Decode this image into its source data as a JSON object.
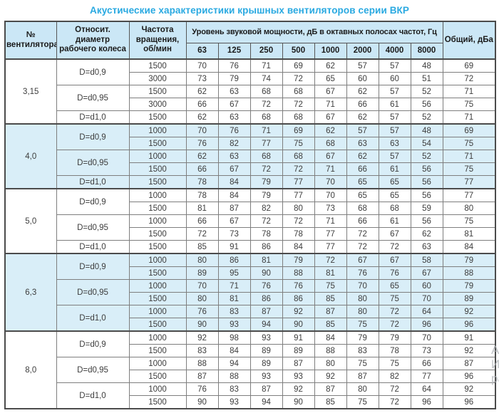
{
  "title": "Акустические характеристики крышных вентиляторов серии ВКР",
  "colors": {
    "accent": "#29a9e1",
    "header_bg": "#cbe7f6",
    "shaded_bg": "#d9eef8",
    "border": "#7e7e7e",
    "border_dark": "#4b4b4b",
    "text": "#3d3d3d"
  },
  "watermark": {
    "lines": [
      "Ак",
      "Ит",
      "ра"
    ]
  },
  "table": {
    "header": {
      "fan": "№ вентилятора",
      "diameter": "Относит. диаметр рабочего колеса",
      "speed": "Частота вращения, об/мин",
      "octave_group": "Уровень звуковой мощности, дБ в октавных полосах частот, Гц",
      "octaves": [
        "63",
        "125",
        "250",
        "500",
        "1000",
        "2000",
        "4000",
        "8000"
      ],
      "total": "Общий, дБа"
    },
    "groups": [
      {
        "fan": "3,15",
        "subgroups": [
          {
            "diameter": "D=d0,9",
            "rows": [
              {
                "speed": "1500",
                "levels": [
                  70,
                  76,
                  71,
                  69,
                  62,
                  57,
                  57,
                  48
                ],
                "total": 69
              },
              {
                "speed": "3000",
                "levels": [
                  73,
                  79,
                  74,
                  72,
                  65,
                  60,
                  60,
                  51
                ],
                "total": 72
              }
            ]
          },
          {
            "diameter": "D=d0,95",
            "rows": [
              {
                "speed": "1500",
                "levels": [
                  62,
                  63,
                  68,
                  68,
                  67,
                  62,
                  57,
                  52
                ],
                "total": 71
              },
              {
                "speed": "3000",
                "levels": [
                  66,
                  67,
                  72,
                  72,
                  71,
                  66,
                  61,
                  56
                ],
                "total": 75
              }
            ]
          },
          {
            "diameter": "D=d1,0",
            "rows": [
              {
                "speed": "1500",
                "levels": [
                  62,
                  63,
                  68,
                  68,
                  67,
                  62,
                  57,
                  52
                ],
                "total": 71
              }
            ]
          }
        ]
      },
      {
        "fan": "4,0",
        "subgroups": [
          {
            "diameter": "D=d0,9",
            "rows": [
              {
                "speed": "1000",
                "levels": [
                  70,
                  76,
                  71,
                  69,
                  62,
                  57,
                  57,
                  48
                ],
                "total": 69
              },
              {
                "speed": "1500",
                "levels": [
                  76,
                  82,
                  77,
                  75,
                  68,
                  63,
                  63,
                  54
                ],
                "total": 75
              }
            ]
          },
          {
            "diameter": "D=d0,95",
            "rows": [
              {
                "speed": "1000",
                "levels": [
                  62,
                  63,
                  68,
                  68,
                  67,
                  62,
                  57,
                  52
                ],
                "total": 71
              },
              {
                "speed": "1500",
                "levels": [
                  66,
                  67,
                  72,
                  72,
                  71,
                  66,
                  61,
                  56
                ],
                "total": 75
              }
            ]
          },
          {
            "diameter": "D=d1,0",
            "rows": [
              {
                "speed": "1500",
                "levels": [
                  78,
                  84,
                  79,
                  77,
                  70,
                  65,
                  65,
                  56
                ],
                "total": 77
              }
            ]
          }
        ]
      },
      {
        "fan": "5,0",
        "subgroups": [
          {
            "diameter": "D=d0,9",
            "rows": [
              {
                "speed": "1000",
                "levels": [
                  78,
                  84,
                  79,
                  77,
                  70,
                  65,
                  65,
                  56
                ],
                "total": 77
              },
              {
                "speed": "1500",
                "levels": [
                  81,
                  87,
                  82,
                  80,
                  73,
                  68,
                  68,
                  59
                ],
                "total": 80
              }
            ]
          },
          {
            "diameter": "D=d0,95",
            "rows": [
              {
                "speed": "1000",
                "levels": [
                  66,
                  67,
                  72,
                  72,
                  71,
                  66,
                  61,
                  56
                ],
                "total": 75
              },
              {
                "speed": "1500",
                "levels": [
                  72,
                  73,
                  78,
                  78,
                  77,
                  72,
                  67,
                  62
                ],
                "total": 81
              }
            ]
          },
          {
            "diameter": "D=d1,0",
            "rows": [
              {
                "speed": "1500",
                "levels": [
                  85,
                  91,
                  86,
                  84,
                  77,
                  72,
                  72,
                  63
                ],
                "total": 84
              }
            ]
          }
        ]
      },
      {
        "fan": "6,3",
        "subgroups": [
          {
            "diameter": "D=d0,9",
            "rows": [
              {
                "speed": "1000",
                "levels": [
                  80,
                  86,
                  81,
                  79,
                  72,
                  67,
                  67,
                  58
                ],
                "total": 79
              },
              {
                "speed": "1500",
                "levels": [
                  89,
                  95,
                  90,
                  88,
                  81,
                  76,
                  76,
                  67
                ],
                "total": 88
              }
            ]
          },
          {
            "diameter": "D=d0,95",
            "rows": [
              {
                "speed": "1000",
                "levels": [
                  70,
                  71,
                  76,
                  76,
                  75,
                  70,
                  65,
                  60
                ],
                "total": 79
              },
              {
                "speed": "1500",
                "levels": [
                  80,
                  81,
                  86,
                  86,
                  85,
                  80,
                  75,
                  70
                ],
                "total": 89
              }
            ]
          },
          {
            "diameter": "D=d1,0",
            "rows": [
              {
                "speed": "1000",
                "levels": [
                  76,
                  83,
                  87,
                  92,
                  87,
                  80,
                  72,
                  64
                ],
                "total": 92
              },
              {
                "speed": "1500",
                "levels": [
                  90,
                  93,
                  94,
                  90,
                  85,
                  75,
                  72,
                  96
                ],
                "total": 96
              }
            ]
          }
        ]
      },
      {
        "fan": "8,0",
        "subgroups": [
          {
            "diameter": "D=d0,9",
            "rows": [
              {
                "speed": "1000",
                "levels": [
                  92,
                  98,
                  93,
                  91,
                  84,
                  79,
                  79,
                  70
                ],
                "total": 91
              },
              {
                "speed": "1500",
                "levels": [
                  83,
                  84,
                  89,
                  89,
                  88,
                  83,
                  78,
                  73
                ],
                "total": 92
              }
            ]
          },
          {
            "diameter": "D=d0,95",
            "rows": [
              {
                "speed": "1000",
                "levels": [
                  88,
                  94,
                  89,
                  87,
                  80,
                  75,
                  75,
                  66
                ],
                "total": 87
              },
              {
                "speed": "1500",
                "levels": [
                  87,
                  88,
                  93,
                  93,
                  92,
                  87,
                  82,
                  77
                ],
                "total": 96
              }
            ]
          },
          {
            "diameter": "D=d1,0",
            "rows": [
              {
                "speed": "1000",
                "levels": [
                  76,
                  83,
                  87,
                  92,
                  87,
                  80,
                  72,
                  64
                ],
                "total": 92
              },
              {
                "speed": "1500",
                "levels": [
                  90,
                  93,
                  94,
                  90,
                  85,
                  75,
                  72,
                  96
                ],
                "total": 96
              }
            ]
          }
        ]
      }
    ]
  }
}
